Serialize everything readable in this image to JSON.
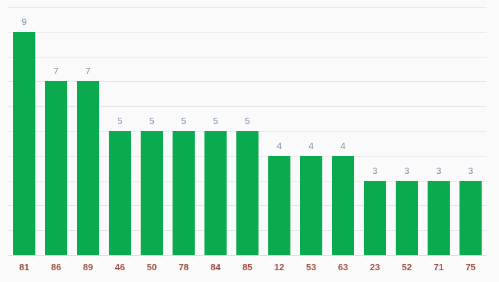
{
  "chart_data": {
    "type": "bar",
    "categories": [
      "81",
      "86",
      "89",
      "46",
      "50",
      "78",
      "84",
      "85",
      "12",
      "53",
      "63",
      "23",
      "52",
      "71",
      "75"
    ],
    "values": [
      9,
      7,
      7,
      5,
      5,
      5,
      5,
      5,
      4,
      4,
      4,
      3,
      3,
      3,
      3
    ],
    "title": "",
    "xlabel": "",
    "ylabel": "",
    "ylim": [
      0,
      10
    ],
    "grid": true,
    "gridline_step": 1,
    "legend": "none",
    "value_labels_shown": true,
    "colors": {
      "bar": "#0aab4f",
      "value_label": "#7590a8",
      "category_label": "#9c4c42",
      "gridline": "#e3e3e3",
      "baseline": "#d6d6d6",
      "background": "#fafafa"
    }
  }
}
